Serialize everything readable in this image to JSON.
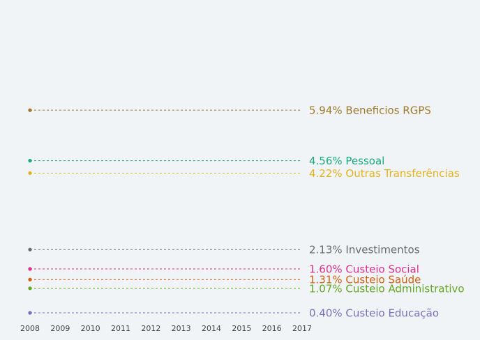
{
  "chart_data": {
    "type": "line",
    "x": [
      "2008",
      "2009",
      "2010",
      "2011",
      "2012",
      "2013",
      "2014",
      "2015",
      "2016",
      "2017"
    ],
    "xlim": [
      2008,
      2017
    ],
    "ylim": [
      0,
      8
    ],
    "grid": false,
    "legend": "inline-right",
    "series": [
      {
        "name": "Beneficios RGPS",
        "label": "5.94% Beneficios RGPS",
        "value": 5.94,
        "color": "#a07a2c",
        "point_years": [
          2008
        ],
        "line_years": [
          2008,
          2017
        ]
      },
      {
        "name": "Pessoal",
        "label": "4.56% Pessoal",
        "value": 4.56,
        "color": "#1aaa82",
        "point_years": [
          2008
        ],
        "line_years": [
          2008,
          2017
        ]
      },
      {
        "name": "Outras Transferências",
        "label": "4.22% Outras Transferências",
        "value": 4.22,
        "color": "#e3b21c",
        "point_years": [
          2008
        ],
        "line_years": [
          2008,
          2017
        ]
      },
      {
        "name": "Investimentos",
        "label": "2.13% Investimentos",
        "value": 2.13,
        "color": "#6b6b6b",
        "point_years": [
          2008
        ],
        "line_years": [
          2008,
          2017
        ]
      },
      {
        "name": "Custeio Social",
        "label": "1.60% Custeio Social",
        "value": 1.6,
        "color": "#e02c8a",
        "point_years": [
          2008
        ],
        "line_years": [
          2008,
          2017
        ]
      },
      {
        "name": "Custeio Saúde",
        "label": "1.31% Custeio Saúde",
        "value": 1.31,
        "color": "#d95f0e",
        "point_years": [
          2008
        ],
        "line_years": [
          2008,
          2017
        ]
      },
      {
        "name": "Custeio Administrativo",
        "label": "1.07% Custeio Administrativo",
        "value": 1.07,
        "color": "#63a81e",
        "point_years": [
          2008
        ],
        "line_years": [
          2008,
          2017
        ]
      },
      {
        "name": "Custeio Educação",
        "label": "0.40% Custeio Educação",
        "value": 0.4,
        "color": "#7771b8",
        "point_years": [
          2008
        ],
        "line_years": [
          2008,
          2017
        ]
      }
    ]
  }
}
